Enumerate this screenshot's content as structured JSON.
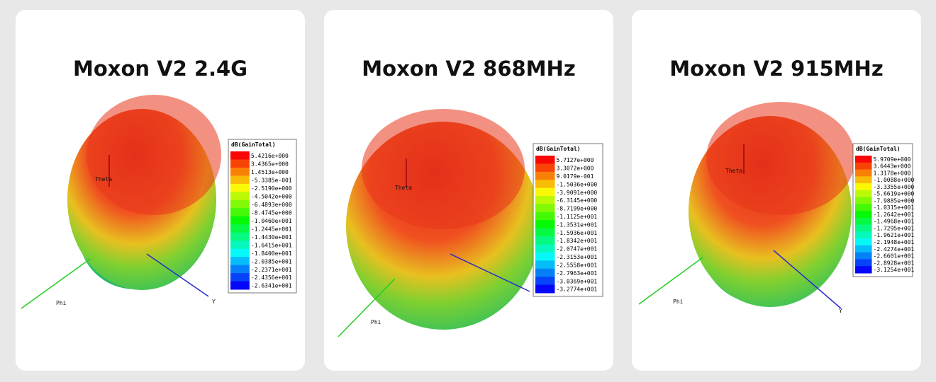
{
  "cards": [
    {
      "title": "Moxon V2 2.4G",
      "legend": {
        "title": "dB(GainTotal)",
        "values": [
          "5.4216e+000",
          "3.4365e+000",
          "1.4513e+000",
          "-5.3385e-001",
          "-2.5190e+000",
          "-4.5042e+000",
          "-6.4893e+000",
          "-8.4745e+000",
          "-1.0460e+001",
          "-1.2445e+001",
          "-1.4430e+001",
          "-1.6415e+001",
          "-1.8400e+001",
          "-2.0385e+001",
          "-2.2371e+001",
          "-2.4356e+001",
          "-2.6341e+001"
        ]
      },
      "axes": {
        "theta": "Theta",
        "phi": "Phi",
        "y": "Y"
      }
    },
    {
      "title": "Moxon V2 868MHz",
      "legend": {
        "title": "dB(GainTotal)",
        "values": [
          "5.7127e+000",
          "3.3072e+000",
          "9.0179e-001",
          "-1.5036e+000",
          "-3.9091e+000",
          "-6.3145e+000",
          "-8.7199e+000",
          "-1.1125e+001",
          "-1.3531e+001",
          "-1.5936e+001",
          "-1.8342e+001",
          "-2.0747e+001",
          "-2.3153e+001",
          "-2.5558e+001",
          "-2.7963e+001",
          "-3.0369e+001",
          "-3.2774e+001"
        ]
      },
      "axes": {
        "theta": "Theta",
        "phi": "Phi"
      }
    },
    {
      "title": "Moxon V2 915MHz",
      "legend": {
        "title": "dB(GainTotal)",
        "values": [
          "5.9709e+000",
          "3.6443e+000",
          "1.3178e+000",
          "-1.0088e+000",
          "-3.3355e+000",
          "-5.6619e+000",
          "-7.9885e+000",
          "-1.0315e+001",
          "-1.2642e+001",
          "-1.4968e+001",
          "-1.7295e+001",
          "-1.9621e+001",
          "-2.1948e+001",
          "-2.4274e+001",
          "-2.6601e+001",
          "-2.8928e+001",
          "-3.1254e+001"
        ]
      },
      "axes": {
        "theta": "Theta",
        "phi": "Phi",
        "y": "Y"
      }
    }
  ]
}
